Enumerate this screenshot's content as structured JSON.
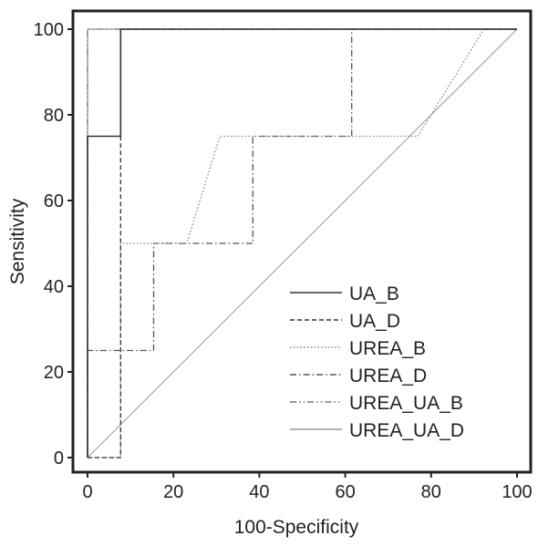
{
  "chart_data": {
    "type": "line",
    "title": "",
    "xlabel": "100-Specificity",
    "ylabel": "Sensitivity",
    "xlim": [
      0,
      100
    ],
    "ylim": [
      0,
      100
    ],
    "xticks": [
      0,
      20,
      40,
      60,
      80,
      100
    ],
    "yticks": [
      0,
      20,
      40,
      60,
      80,
      100
    ],
    "grid": false,
    "legend_position": "bottom-right",
    "reference_line": {
      "x": [
        0,
        100
      ],
      "y": [
        0,
        100
      ],
      "color": "#999999"
    },
    "series": [
      {
        "name": "UA_B",
        "style": "solid",
        "color": "#333333",
        "x": [
          0,
          0,
          7.7,
          7.7,
          100
        ],
        "y": [
          0,
          75,
          75,
          100,
          100
        ]
      },
      {
        "name": "UA_D",
        "style": "dashed",
        "color": "#333333",
        "x": [
          0,
          7.7,
          7.7,
          100
        ],
        "y": [
          0,
          0,
          100,
          100
        ]
      },
      {
        "name": "UREA_B",
        "style": "dotted",
        "color": "#8a8a8a",
        "x": [
          0,
          7.7,
          7.7,
          23.1,
          30.8,
          76.9,
          92.3,
          100
        ],
        "y": [
          0,
          0,
          50,
          50,
          75,
          75,
          100,
          100
        ]
      },
      {
        "name": "UREA_D",
        "style": "dashdot",
        "color": "#555555",
        "x": [
          0,
          0,
          15.4,
          15.4,
          38.5,
          38.5,
          61.5,
          61.5,
          100
        ],
        "y": [
          0,
          25,
          25,
          50,
          50,
          75,
          75,
          100,
          100
        ]
      },
      {
        "name": "UREA_UA_B",
        "style": "dashdotdot",
        "color": "#777777",
        "x": [
          0,
          0,
          100
        ],
        "y": [
          0,
          100,
          100
        ]
      },
      {
        "name": "UREA_UA_D",
        "style": "solid",
        "color": "#9a9a9a",
        "x": [
          0,
          0,
          100
        ],
        "y": [
          0,
          100,
          100
        ]
      }
    ]
  }
}
